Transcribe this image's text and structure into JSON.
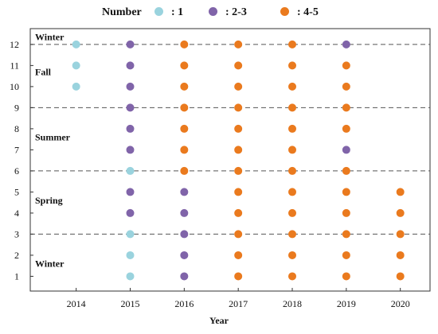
{
  "chart_data": {
    "type": "scatter",
    "xlabel": "Year",
    "ylabel": "",
    "x_ticks": [
      2014,
      2015,
      2016,
      2017,
      2018,
      2019,
      2020
    ],
    "y_ticks": [
      1,
      2,
      3,
      4,
      5,
      6,
      7,
      8,
      9,
      10,
      11,
      12
    ],
    "xlim": [
      2013.15,
      2020.55
    ],
    "ylim": [
      0.3,
      12.75
    ],
    "legend": {
      "title": "Number",
      "placement": "top",
      "entries": [
        {
          "label": ": 1",
          "color": "#9ad3de"
        },
        {
          "label": ": 2-3",
          "color": "#8064a9"
        },
        {
          "label": ": 4-5",
          "color": "#ea7a1e"
        }
      ]
    },
    "season_lines": [
      3,
      6,
      9,
      12
    ],
    "season_labels": [
      {
        "text": "Winter",
        "month": 12.35
      },
      {
        "text": "Fall",
        "month": 10.7
      },
      {
        "text": "Summer",
        "month": 7.6
      },
      {
        "text": "Spring",
        "month": 4.6
      },
      {
        "text": "Winter",
        "month": 1.6
      }
    ],
    "grid": false,
    "series": [
      {
        "color_index": 0,
        "points": [
          [
            2014,
            10
          ],
          [
            2014,
            11
          ],
          [
            2014,
            12
          ],
          [
            2015,
            1
          ],
          [
            2015,
            2
          ],
          [
            2015,
            3
          ],
          [
            2015,
            6
          ]
        ]
      },
      {
        "color_index": 1,
        "points": [
          [
            2015,
            4
          ],
          [
            2015,
            5
          ],
          [
            2015,
            7
          ],
          [
            2015,
            8
          ],
          [
            2015,
            9
          ],
          [
            2015,
            10
          ],
          [
            2015,
            11
          ],
          [
            2015,
            12
          ],
          [
            2016,
            1
          ],
          [
            2016,
            2
          ],
          [
            2016,
            3
          ],
          [
            2016,
            4
          ],
          [
            2016,
            5
          ],
          [
            2019,
            7
          ],
          [
            2019,
            12
          ]
        ]
      },
      {
        "color_index": 2,
        "points": [
          [
            2016,
            6
          ],
          [
            2016,
            7
          ],
          [
            2016,
            8
          ],
          [
            2016,
            9
          ],
          [
            2016,
            10
          ],
          [
            2016,
            11
          ],
          [
            2016,
            12
          ],
          [
            2017,
            1
          ],
          [
            2017,
            2
          ],
          [
            2017,
            3
          ],
          [
            2017,
            4
          ],
          [
            2017,
            5
          ],
          [
            2017,
            6
          ],
          [
            2017,
            7
          ],
          [
            2017,
            8
          ],
          [
            2017,
            9
          ],
          [
            2017,
            10
          ],
          [
            2017,
            11
          ],
          [
            2017,
            12
          ],
          [
            2018,
            1
          ],
          [
            2018,
            2
          ],
          [
            2018,
            3
          ],
          [
            2018,
            4
          ],
          [
            2018,
            5
          ],
          [
            2018,
            6
          ],
          [
            2018,
            7
          ],
          [
            2018,
            8
          ],
          [
            2018,
            9
          ],
          [
            2018,
            10
          ],
          [
            2018,
            11
          ],
          [
            2018,
            12
          ],
          [
            2019,
            1
          ],
          [
            2019,
            2
          ],
          [
            2019,
            3
          ],
          [
            2019,
            4
          ],
          [
            2019,
            5
          ],
          [
            2019,
            6
          ],
          [
            2019,
            8
          ],
          [
            2019,
            9
          ],
          [
            2019,
            10
          ],
          [
            2019,
            11
          ],
          [
            2020,
            1
          ],
          [
            2020,
            2
          ],
          [
            2020,
            3
          ],
          [
            2020,
            4
          ],
          [
            2020,
            5
          ]
        ]
      }
    ]
  }
}
